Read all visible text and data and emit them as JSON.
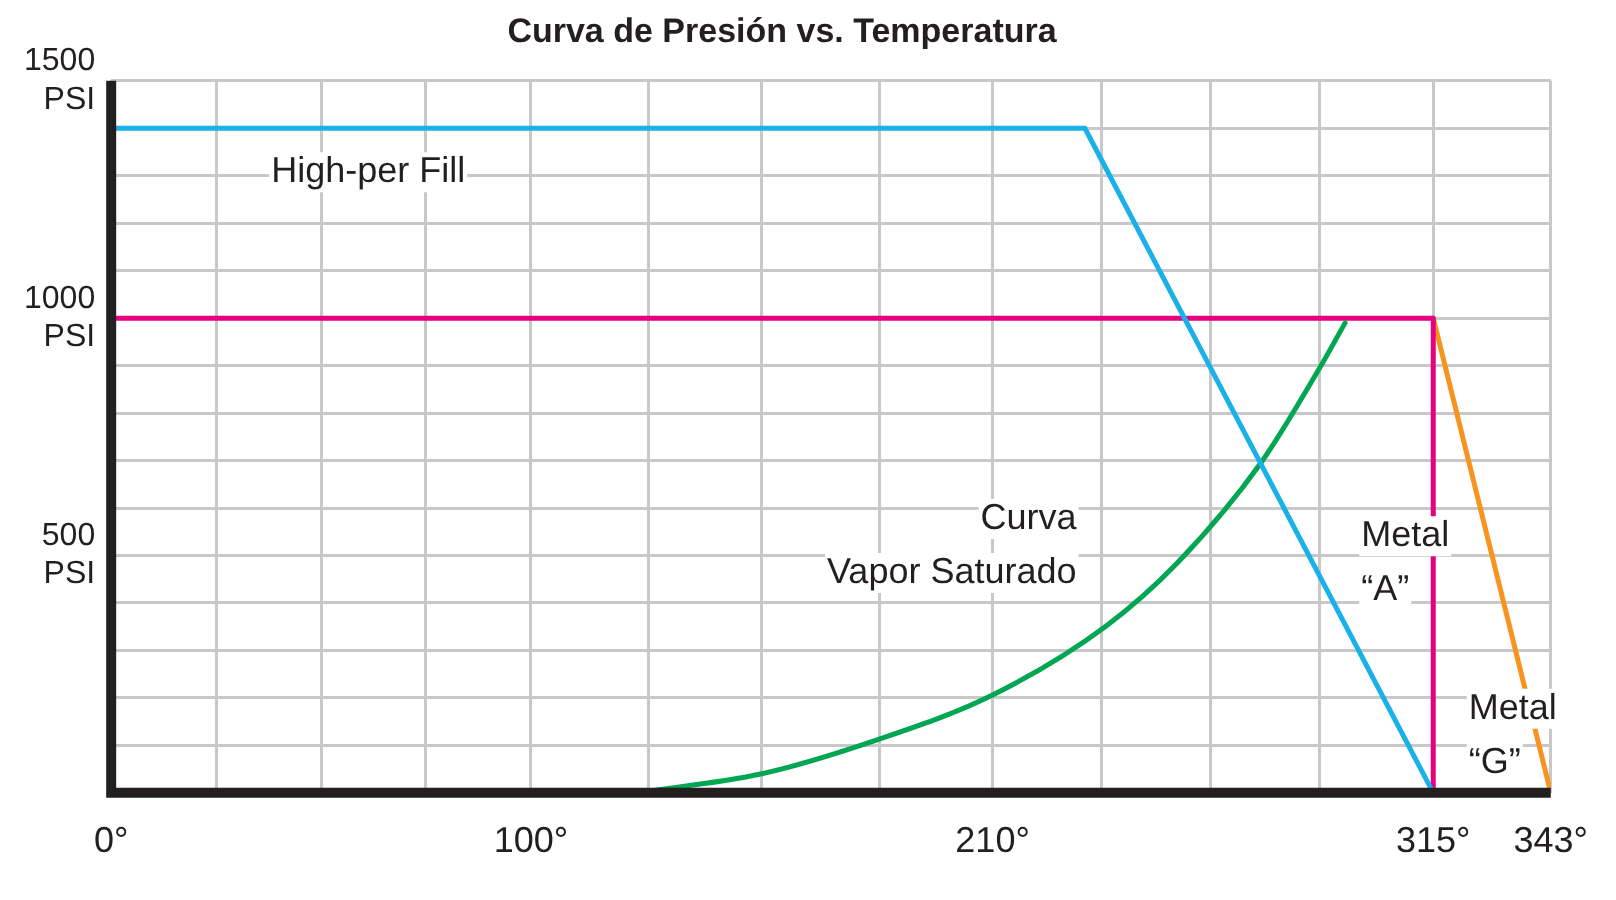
{
  "chart_data": {
    "type": "line",
    "title": "Curva de Presión vs. Temperatura",
    "xlim": [
      0,
      343
    ],
    "xticks": [
      {
        "value": 0,
        "label": "0°"
      },
      {
        "value": 25,
        "label": null
      },
      {
        "value": 50,
        "label": null
      },
      {
        "value": 75,
        "label": null
      },
      {
        "value": 100,
        "label": "100°"
      },
      {
        "value": 128,
        "label": null
      },
      {
        "value": 155,
        "label": null
      },
      {
        "value": 183,
        "label": null
      },
      {
        "value": 210,
        "label": "210°"
      },
      {
        "value": 236,
        "label": null
      },
      {
        "value": 262,
        "label": null
      },
      {
        "value": 288,
        "label": null
      },
      {
        "value": 315,
        "label": "315°"
      },
      {
        "value": 343,
        "label": "343°"
      }
    ],
    "ylim": [
      0,
      1500
    ],
    "yticks": [
      {
        "value": 0,
        "label": null
      },
      {
        "value": 100,
        "label": null
      },
      {
        "value": 200,
        "label": null
      },
      {
        "value": 300,
        "label": null
      },
      {
        "value": 400,
        "label": null
      },
      {
        "value": 500,
        "label": "500\nPSI"
      },
      {
        "value": 600,
        "label": null
      },
      {
        "value": 700,
        "label": null
      },
      {
        "value": 800,
        "label": null
      },
      {
        "value": 900,
        "label": null
      },
      {
        "value": 1000,
        "label": "1000\nPSI"
      },
      {
        "value": 1100,
        "label": null
      },
      {
        "value": 1200,
        "label": null
      },
      {
        "value": 1300,
        "label": null
      },
      {
        "value": 1400,
        "label": null
      },
      {
        "value": 1500,
        "label": "1500\nPSI"
      }
    ],
    "grid": true,
    "legend": false,
    "marker": "none",
    "line_style": "solid",
    "series": [
      {
        "name": "High-per Fill",
        "color": "#1ab0e8",
        "x": [
          0,
          232,
          315
        ],
        "values": [
          1400,
          1400,
          0
        ]
      },
      {
        "name": "Curva\nVapor Saturado",
        "color": "#00a651",
        "x": [
          125,
          155,
          183,
          210,
          237,
          254,
          274,
          288,
          294
        ],
        "values": [
          0,
          40,
          113,
          206,
          351,
          484,
          696,
          896,
          990
        ]
      },
      {
        "name": "Metal\n“A”",
        "color": "#e6007e",
        "x": [
          0,
          315,
          315
        ],
        "values": [
          1000,
          1000,
          0
        ]
      },
      {
        "name": "Metal\n“G”",
        "color": "#f7941d",
        "x": [
          315,
          343
        ],
        "values": [
          1000,
          0
        ]
      }
    ]
  }
}
